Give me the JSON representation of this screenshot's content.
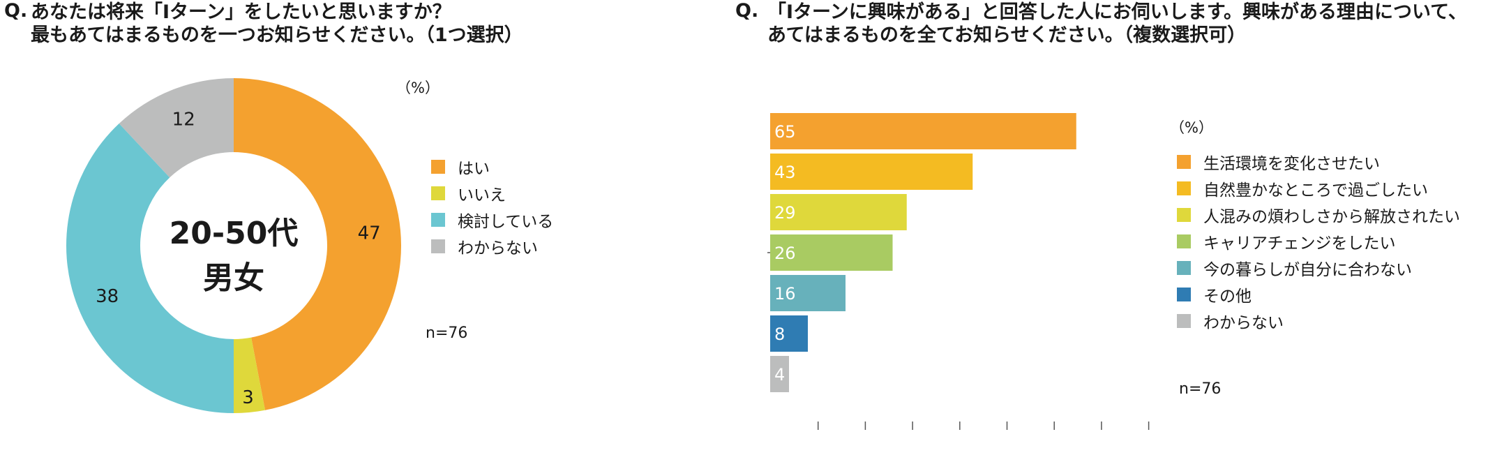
{
  "left": {
    "q": "Q.",
    "title_line1": "あなたは将来「Iターン」をしたいと思いますか？",
    "title_line2": "最もあてはまるものを一つお知らせください。（1つ選択）",
    "unit": "（%）",
    "center_line1": "20-50代",
    "center_line2": "男女",
    "n": "n=76",
    "colors": [
      "#f4a12f",
      "#dfd83b",
      "#6bc6d1",
      "#bcbdbd"
    ]
  },
  "right": {
    "q": "Q.",
    "title_line1": "「Iターンに興味がある」と回答した人にお伺いします。興味がある理由について、",
    "title_line2": "あてはまるものを全てお知らせください。（複数選択可）",
    "unit": "（%）",
    "n": "n=76",
    "colors": [
      "#f4a12f",
      "#f4bb22",
      "#dfd83b",
      "#a9cb62",
      "#67b1bb",
      "#2f7cb3",
      "#bcbdbd"
    ]
  },
  "chart_data": [
    {
      "type": "pie",
      "title": "あなたは将来「Iターン」をしたいと思いますか？",
      "categories": [
        "はい",
        "いいえ",
        "検討している",
        "わからない"
      ],
      "values": [
        47,
        3,
        38,
        12
      ],
      "unit": "%",
      "legend": "right"
    },
    {
      "type": "bar",
      "orientation": "horizontal",
      "title": "「Iターンに興味がある」と回答した人にお伺いします。興味がある理由について、あてはまるものを全てお知らせください。",
      "categories": [
        "生活環境を変化させたい",
        "自然豊かなところで過ごしたい",
        "人混みの煩わしさから解放されたい",
        "キャリアチェンジをしたい",
        "今の暮らしが自分に合わない",
        "その他",
        "わからない"
      ],
      "values": [
        65,
        43,
        29,
        26,
        16,
        8,
        4
      ],
      "unit": "%",
      "xlim": [
        0,
        80
      ],
      "legend": "right"
    }
  ]
}
